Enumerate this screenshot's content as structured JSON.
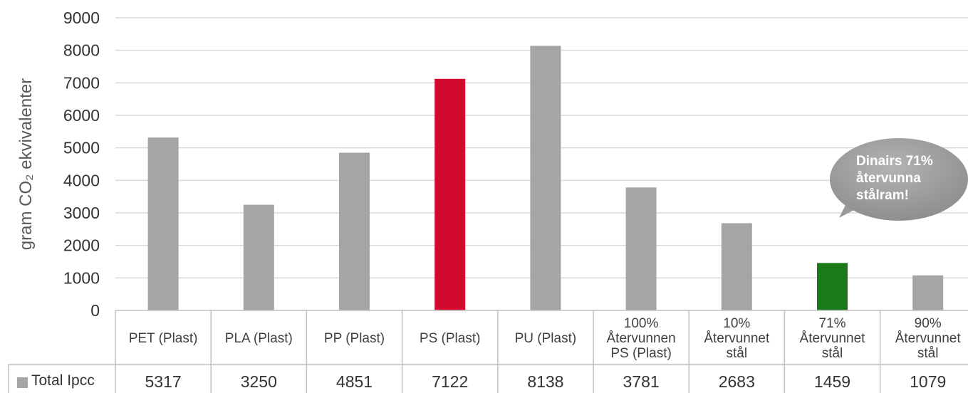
{
  "chart_data": {
    "type": "bar",
    "ylabel": "gram CO₂ ekvivalenter",
    "ylim": [
      0,
      9000
    ],
    "yticks": [
      0,
      1000,
      2000,
      3000,
      4000,
      5000,
      6000,
      7000,
      8000,
      9000
    ],
    "grid": true,
    "categories": [
      [
        "PET (Plast)"
      ],
      [
        "PLA (Plast)"
      ],
      [
        "PP (Plast)"
      ],
      [
        "PS (Plast)"
      ],
      [
        "PU (Plast)"
      ],
      [
        "100%",
        "Återvunnen",
        "PS (Plast)"
      ],
      [
        "10%",
        "Återvunnet",
        "stål"
      ],
      [
        "71%",
        "Återvunnet",
        "stål"
      ],
      [
        "90%",
        "Återvunnet",
        "stål"
      ]
    ],
    "series": [
      {
        "name": "Total Ipcc",
        "color": "#a5a5a5",
        "values": [
          5317,
          3250,
          4851,
          7122,
          8138,
          3781,
          2683,
          1459,
          1079
        ],
        "point_colors": [
          "#a5a5a5",
          "#a5a5a5",
          "#a5a5a5",
          "#d10a2e",
          "#a5a5a5",
          "#a5a5a5",
          "#a5a5a5",
          "#1a7a1a",
          "#a5a5a5"
        ]
      }
    ],
    "legend": "data-table-left",
    "annotations": [
      {
        "text": [
          "Dinairs 71%",
          "återvunna",
          "stålram!"
        ],
        "points_to": "71% Återvunnet stål"
      }
    ]
  }
}
